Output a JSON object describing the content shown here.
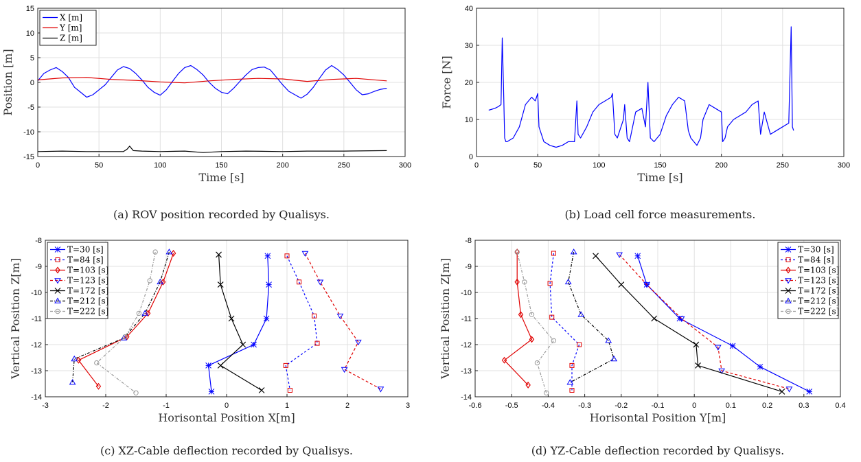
{
  "chart_data": [
    {
      "id": "a",
      "type": "line",
      "caption": "(a) ROV position recorded by Qualisys.",
      "xlabel": "Time [s]",
      "ylabel": "Position [m]",
      "xlim": [
        0,
        300
      ],
      "ylim": [
        -15,
        15
      ],
      "xticks": [
        0,
        50,
        100,
        150,
        200,
        250,
        300
      ],
      "yticks": [
        -15,
        -10,
        -5,
        0,
        5,
        10,
        15
      ],
      "grid": true,
      "legend": "top-left",
      "series": [
        {
          "name": "X [m]",
          "color": "#0000ff",
          "x": [
            0,
            5,
            10,
            15,
            20,
            25,
            30,
            35,
            40,
            45,
            50,
            55,
            60,
            65,
            70,
            75,
            80,
            85,
            90,
            95,
            100,
            105,
            110,
            115,
            120,
            125,
            130,
            135,
            140,
            145,
            150,
            155,
            160,
            165,
            170,
            175,
            180,
            185,
            190,
            195,
            200,
            205,
            210,
            215,
            220,
            225,
            230,
            235,
            240,
            245,
            250,
            255,
            260,
            265,
            270,
            275,
            280,
            285
          ],
          "y": [
            0.3,
            1.8,
            2.5,
            3,
            2.2,
            1,
            -1,
            -2,
            -3,
            -2.5,
            -1.5,
            -0.5,
            1,
            2.5,
            3.2,
            2.8,
            1.8,
            0.5,
            -1,
            -2,
            -2.6,
            -1.5,
            0.2,
            1.8,
            3,
            3.4,
            2.6,
            1.5,
            0,
            -1.2,
            -2,
            -2.3,
            -1.2,
            0.2,
            1.5,
            2.6,
            3,
            3.1,
            2.5,
            1,
            -0.5,
            -1.8,
            -2.5,
            -3.2,
            -2.4,
            -1,
            0.8,
            2.5,
            3.4,
            2.6,
            1.5,
            0,
            -1.5,
            -2.5,
            -2.3,
            -1.8,
            -1.4,
            -1.2
          ]
        },
        {
          "name": "Y [m]",
          "color": "#e00000",
          "x": [
            0,
            20,
            40,
            60,
            80,
            100,
            120,
            140,
            160,
            180,
            200,
            220,
            240,
            260,
            285
          ],
          "y": [
            0.5,
            0.9,
            1.0,
            0.6,
            0.4,
            0.1,
            -0.1,
            0.3,
            0.6,
            0.8,
            0.7,
            0.2,
            0.6,
            0.8,
            0.3
          ]
        },
        {
          "name": "Z [m]",
          "color": "#000000",
          "x": [
            0,
            20,
            40,
            60,
            70,
            73,
            75,
            78,
            85,
            100,
            120,
            135,
            150,
            170,
            200,
            220,
            250,
            285
          ],
          "y": [
            -14,
            -13.9,
            -14,
            -14,
            -14,
            -13.5,
            -12.9,
            -13.8,
            -13.9,
            -14,
            -13.9,
            -14.2,
            -14,
            -13.9,
            -14,
            -13.9,
            -13.9,
            -13.8
          ]
        }
      ]
    },
    {
      "id": "b",
      "type": "line",
      "caption": "(b) Load cell force measurements.",
      "xlabel": "Time [s]",
      "ylabel": "Force [N]",
      "xlim": [
        0,
        300
      ],
      "ylim": [
        0,
        40
      ],
      "xticks": [
        0,
        50,
        100,
        150,
        200,
        250,
        300
      ],
      "yticks": [
        0,
        10,
        20,
        30,
        40
      ],
      "grid": true,
      "series": [
        {
          "name": "",
          "color": "#0000ff",
          "x": [
            10,
            15,
            18,
            20,
            21,
            22,
            23,
            24,
            25,
            30,
            35,
            40,
            45,
            48,
            50,
            51,
            55,
            60,
            65,
            70,
            75,
            80,
            82,
            83,
            85,
            90,
            95,
            100,
            105,
            110,
            111,
            113,
            115,
            120,
            121,
            123,
            125,
            130,
            135,
            138,
            140,
            142,
            145,
            150,
            155,
            160,
            165,
            170,
            173,
            175,
            180,
            183,
            185,
            190,
            195,
            200,
            201,
            203,
            205,
            210,
            215,
            220,
            225,
            230,
            232,
            235,
            240,
            245,
            250,
            255,
            257,
            258,
            259
          ],
          "y": [
            12.5,
            13,
            13.5,
            14,
            32,
            20,
            5,
            4,
            4,
            5,
            8,
            14,
            16,
            15,
            17,
            8,
            4,
            3,
            2.5,
            3,
            4,
            4,
            15,
            6,
            5,
            8,
            12,
            14,
            15,
            16,
            17,
            6,
            5,
            10,
            14,
            5,
            4,
            12,
            13,
            8,
            20,
            5,
            4,
            6,
            11,
            14,
            16,
            15,
            7,
            5,
            3,
            5,
            10,
            14,
            13,
            12,
            4,
            5,
            8,
            10,
            11,
            12,
            14,
            15,
            6,
            12,
            6,
            7,
            8,
            9,
            35,
            8,
            7
          ]
        }
      ]
    },
    {
      "id": "c",
      "type": "line",
      "caption": "(c) XZ-Cable deflection recorded by Qualisys.",
      "xlabel": "Horisontal Position X[m]",
      "ylabel": "Vertical Position Z[m]",
      "xlim": [
        -3,
        3
      ],
      "ylim": [
        -14,
        -8
      ],
      "xticks": [
        -3,
        -2,
        -1,
        0,
        1,
        2,
        3
      ],
      "yticks": [
        -8,
        -9,
        -10,
        -11,
        -12,
        -13,
        -14
      ],
      "grid": true,
      "legend": "top-left",
      "series": [
        {
          "name": "T=30 [s]",
          "color": "#0000ff",
          "marker": "star",
          "dash": "",
          "x": [
            0.68,
            0.7,
            0.66,
            0.45,
            -0.3,
            -0.25
          ],
          "y": [
            -8.6,
            -9.7,
            -11.0,
            -12.0,
            -12.8,
            -13.8
          ]
        },
        {
          "name": "T=84 [s]",
          "color": "#0000ff",
          "marker": "square",
          "dash": "3,3",
          "markerColor": "#e00000",
          "x": [
            1.0,
            1.2,
            1.45,
            1.5,
            0.98,
            1.05
          ],
          "y": [
            -8.6,
            -9.6,
            -10.9,
            -11.95,
            -12.8,
            -13.75
          ]
        },
        {
          "name": "T=103 [s]",
          "color": "#e00000",
          "marker": "diamond",
          "dash": "",
          "x": [
            -0.88,
            -1.05,
            -1.3,
            -1.65,
            -2.45,
            -2.12
          ],
          "y": [
            -8.5,
            -9.6,
            -10.8,
            -11.7,
            -12.6,
            -13.6
          ]
        },
        {
          "name": "T=123 [s]",
          "color": "#e00000",
          "marker": "triangle-down",
          "dash": "4,3",
          "markerColor": "#0000ff",
          "x": [
            1.3,
            1.55,
            1.88,
            2.18,
            1.95,
            2.55
          ],
          "y": [
            -8.5,
            -9.6,
            -10.9,
            -11.9,
            -12.95,
            -13.7
          ]
        },
        {
          "name": "T=172 [s]",
          "color": "#000000",
          "marker": "x",
          "dash": "",
          "x": [
            -0.13,
            -0.1,
            0.08,
            0.27,
            -0.1,
            0.58
          ],
          "y": [
            -8.55,
            -9.7,
            -11.0,
            -12.0,
            -12.8,
            -13.75
          ]
        },
        {
          "name": "T=212 [s]",
          "color": "#000000",
          "marker": "triangle-up",
          "dash": "4,2,1,2",
          "markerColor": "#0000ff",
          "x": [
            -0.95,
            -1.1,
            -1.35,
            -1.7,
            -2.52,
            -2.55
          ],
          "y": [
            -8.45,
            -9.6,
            -10.8,
            -11.75,
            -12.55,
            -13.45
          ]
        },
        {
          "name": "T=222 [s]",
          "color": "#999999",
          "marker": "circle",
          "dash": "4,2,1,2",
          "x": [
            -1.18,
            -1.27,
            -1.45,
            -1.68,
            -2.15,
            -1.5
          ],
          "y": [
            -8.45,
            -9.55,
            -10.8,
            -11.7,
            -12.7,
            -13.85
          ]
        }
      ]
    },
    {
      "id": "d",
      "type": "line",
      "caption": "(d) YZ-Cable deflection recorded by Qualisys.",
      "xlabel": "Horisontal Position Y[m]",
      "ylabel": "Vertical Position Z[m]",
      "xlim": [
        -0.6,
        0.4
      ],
      "ylim": [
        -14,
        -8
      ],
      "xticks": [
        -0.6,
        -0.5,
        -0.4,
        -0.3,
        -0.2,
        -0.1,
        0,
        0.1,
        0.2,
        0.3,
        0.4
      ],
      "yticks": [
        -8,
        -9,
        -10,
        -11,
        -12,
        -13,
        -14
      ],
      "grid": true,
      "legend": "top-right",
      "series": [
        {
          "name": "T=30 [s]",
          "color": "#0000ff",
          "marker": "star",
          "dash": "",
          "x": [
            -0.155,
            -0.13,
            -0.04,
            0.105,
            0.18,
            0.315
          ],
          "y": [
            -8.6,
            -9.7,
            -11.0,
            -12.05,
            -12.85,
            -13.8
          ]
        },
        {
          "name": "T=84 [s]",
          "color": "#0000ff",
          "marker": "square",
          "dash": "3,3",
          "markerColor": "#e00000",
          "x": [
            -0.385,
            -0.395,
            -0.39,
            -0.315,
            -0.335,
            -0.335
          ],
          "y": [
            -8.5,
            -9.65,
            -10.95,
            -12.0,
            -12.8,
            -13.75
          ]
        },
        {
          "name": "T=103 [s]",
          "color": "#e00000",
          "marker": "diamond",
          "dash": "",
          "x": [
            -0.485,
            -0.485,
            -0.475,
            -0.445,
            -0.52,
            -0.455
          ],
          "y": [
            -8.45,
            -9.6,
            -10.85,
            -11.8,
            -12.6,
            -13.55
          ]
        },
        {
          "name": "T=123 [s]",
          "color": "#e00000",
          "marker": "triangle-down",
          "dash": "4,3",
          "markerColor": "#0000ff",
          "x": [
            -0.205,
            -0.13,
            -0.035,
            0.065,
            0.075,
            0.26
          ],
          "y": [
            -8.55,
            -9.7,
            -11.0,
            -12.1,
            -13.0,
            -13.7
          ]
        },
        {
          "name": "T=172 [s]",
          "color": "#000000",
          "marker": "x",
          "dash": "",
          "x": [
            -0.27,
            -0.2,
            -0.11,
            0.005,
            0.01,
            0.24
          ],
          "y": [
            -8.6,
            -9.7,
            -11.0,
            -12.0,
            -12.8,
            -13.8
          ]
        },
        {
          "name": "T=212 [s]",
          "color": "#000000",
          "marker": "triangle-up",
          "dash": "4,2,1,2",
          "markerColor": "#0000ff",
          "x": [
            -0.33,
            -0.345,
            -0.31,
            -0.235,
            -0.22,
            -0.34
          ],
          "y": [
            -8.45,
            -9.6,
            -10.85,
            -11.85,
            -12.55,
            -13.45
          ]
        },
        {
          "name": "T=222 [s]",
          "color": "#999999",
          "marker": "circle",
          "dash": "4,2,1,2",
          "x": [
            -0.485,
            -0.465,
            -0.445,
            -0.385,
            -0.43,
            -0.405
          ],
          "y": [
            -8.45,
            -9.6,
            -10.85,
            -11.85,
            -12.7,
            -13.85
          ]
        }
      ]
    }
  ]
}
